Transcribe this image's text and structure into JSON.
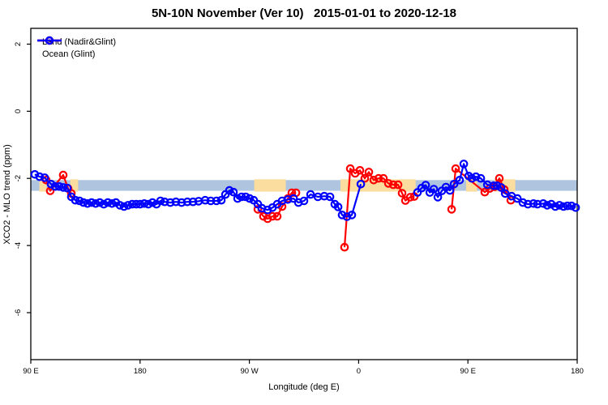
{
  "header": {
    "title": "5N-10N November (Ver 10)   2015-01-01 to 2020-12-18"
  },
  "legend": {
    "items": [
      {
        "label": "Land (Nadir&Glint)",
        "color": "#FF0000"
      },
      {
        "label": "Ocean (Glint)",
        "color": "#0000FF"
      }
    ]
  },
  "axes": {
    "x": {
      "label": "Longitude (deg E)"
    },
    "y": {
      "label": "XCO2 - MLO trend (ppm)"
    }
  },
  "chart_data": {
    "type": "line",
    "title": "5N-10N November (Ver 10)   2015-01-01 to 2020-12-18",
    "xlabel": "Longitude (deg E)",
    "ylabel": "XCO2 - MLO trend (ppm)",
    "x_axis_degrees_east": [
      90,
      540
    ],
    "x_ticks": [
      {
        "value": 90,
        "label": "90 E"
      },
      {
        "value": 180,
        "label": "180"
      },
      {
        "value": 270,
        "label": "90 W"
      },
      {
        "value": 360,
        "label": "0"
      },
      {
        "value": 450,
        "label": "90 E"
      },
      {
        "value": 540,
        "label": "180"
      }
    ],
    "y_ticks": [
      {
        "value": 2,
        "label": "2"
      },
      {
        "value": 0,
        "label": "0"
      },
      {
        "value": -2,
        "label": "-2"
      },
      {
        "value": -4,
        "label": "-4"
      },
      {
        "value": -6,
        "label": "-6"
      }
    ],
    "ylim": [
      -7.4,
      2.47
    ],
    "grid": false,
    "legend_position": "top-left",
    "reference_band": {
      "color": "#AFC4DF",
      "ppm_from": -2.05,
      "ppm_to": -2.37
    },
    "highlight_band_segments": {
      "color": "#FADD9F",
      "ranges": [
        {
          "from": 97.0,
          "to": 103.0
        },
        {
          "from": 122.5,
          "to": 129.0
        },
        {
          "from": 274.0,
          "to": 300.0
        },
        {
          "from": 345.0,
          "to": 407.0
        },
        {
          "from": 448.5,
          "to": 457.5
        },
        {
          "from": 472.0,
          "to": 489.0
        }
      ]
    },
    "series": [
      {
        "name": "Land (Nadir&Glint)",
        "color": "#FF0000",
        "segments": [
          [
            [
              102.7,
              -2.05
            ],
            [
              106.0,
              -2.37
            ],
            [
              116.7,
              -1.9
            ],
            [
              120.7,
              -2.3
            ],
            [
              123.4,
              -2.45
            ]
          ],
          [
            [
              277.0,
              -2.92
            ],
            [
              281.6,
              -3.13
            ],
            [
              285.0,
              -3.2
            ],
            [
              289.0,
              -3.13
            ],
            [
              293.0,
              -3.13
            ],
            [
              297.0,
              -2.84
            ],
            [
              301.7,
              -2.6
            ],
            [
              305.0,
              -2.43
            ],
            [
              308.4,
              -2.43
            ]
          ],
          [
            [
              348.4,
              -4.05
            ],
            [
              353.1,
              -1.71
            ],
            [
              357.1,
              -1.85
            ],
            [
              361.1,
              -1.76
            ],
            [
              365.1,
              -2.0
            ],
            [
              368.4,
              -1.81
            ],
            [
              372.4,
              -2.05
            ],
            [
              376.4,
              -2.0
            ],
            [
              380.4,
              -2.0
            ],
            [
              384.5,
              -2.15
            ],
            [
              388.5,
              -2.19
            ],
            [
              392.5,
              -2.19
            ],
            [
              395.8,
              -2.44
            ],
            [
              398.5,
              -2.66
            ],
            [
              402.5,
              -2.56
            ],
            [
              405.8,
              -2.54
            ]
          ],
          [
            [
              436.6,
              -2.92
            ],
            [
              439.9,
              -1.71
            ],
            [
              463.9,
              -2.41
            ],
            [
              467.9,
              -2.3
            ],
            [
              471.9,
              -2.25
            ],
            [
              475.9,
              -2.0
            ],
            [
              479.9,
              -2.33
            ],
            [
              485.3,
              -2.65
            ]
          ]
        ]
      },
      {
        "name": "Ocean (Glint)",
        "color": "#0000FF",
        "segments": [
          [
            [
              93.3,
              -1.88
            ],
            [
              97.3,
              -1.95
            ],
            [
              101.4,
              -1.98
            ],
            [
              106.7,
              -2.17
            ],
            [
              110.0,
              -2.24
            ],
            [
              113.4,
              -2.24
            ],
            [
              116.7,
              -2.27
            ],
            [
              120.1,
              -2.29
            ],
            [
              123.4,
              -2.55
            ],
            [
              126.7,
              -2.65
            ],
            [
              130.1,
              -2.67
            ],
            [
              133.4,
              -2.72
            ],
            [
              136.7,
              -2.75
            ],
            [
              140.1,
              -2.72
            ],
            [
              143.4,
              -2.75
            ],
            [
              146.8,
              -2.72
            ],
            [
              150.1,
              -2.77
            ],
            [
              153.4,
              -2.72
            ],
            [
              156.8,
              -2.75
            ],
            [
              160.1,
              -2.72
            ],
            [
              163.4,
              -2.8
            ],
            [
              166.8,
              -2.84
            ],
            [
              170.1,
              -2.8
            ],
            [
              173.5,
              -2.77
            ],
            [
              176.8,
              -2.77
            ],
            [
              180.1,
              -2.77
            ],
            [
              183.5,
              -2.75
            ],
            [
              186.8,
              -2.77
            ],
            [
              190.2,
              -2.72
            ],
            [
              193.5,
              -2.77
            ],
            [
              196.8,
              -2.67
            ],
            [
              200.2,
              -2.7
            ],
            [
              204.9,
              -2.72
            ],
            [
              209.5,
              -2.7
            ],
            [
              214.2,
              -2.72
            ],
            [
              218.9,
              -2.7
            ],
            [
              223.6,
              -2.7
            ],
            [
              228.2,
              -2.68
            ],
            [
              233.6,
              -2.65
            ],
            [
              238.2,
              -2.67
            ],
            [
              242.9,
              -2.67
            ],
            [
              246.9,
              -2.65
            ],
            [
              250.3,
              -2.48
            ],
            [
              253.6,
              -2.36
            ],
            [
              256.9,
              -2.41
            ],
            [
              260.3,
              -2.6
            ],
            [
              263.6,
              -2.55
            ],
            [
              267.0,
              -2.55
            ],
            [
              270.3,
              -2.6
            ],
            [
              273.6,
              -2.65
            ],
            [
              277.0,
              -2.77
            ],
            [
              280.3,
              -2.89
            ],
            [
              285.0,
              -2.94
            ],
            [
              289.0,
              -2.87
            ],
            [
              293.0,
              -2.77
            ],
            [
              297.0,
              -2.67
            ],
            [
              301.7,
              -2.63
            ],
            [
              306.4,
              -2.6
            ],
            [
              310.4,
              -2.72
            ],
            [
              315.0,
              -2.67
            ],
            [
              320.4,
              -2.48
            ],
            [
              326.4,
              -2.55
            ],
            [
              331.7,
              -2.53
            ],
            [
              336.4,
              -2.55
            ],
            [
              340.4,
              -2.77
            ],
            [
              343.1,
              -2.85
            ],
            [
              346.4,
              -3.09
            ],
            [
              350.4,
              -3.14
            ],
            [
              354.4,
              -3.09
            ],
            [
              361.8,
              -2.17
            ]
          ],
          [
            [
              408.5,
              -2.42
            ],
            [
              411.9,
              -2.29
            ],
            [
              415.2,
              -2.2
            ],
            [
              418.6,
              -2.42
            ],
            [
              421.9,
              -2.32
            ],
            [
              425.2,
              -2.56
            ],
            [
              428.6,
              -2.37
            ],
            [
              431.9,
              -2.26
            ],
            [
              435.2,
              -2.36
            ],
            [
              438.6,
              -2.17
            ],
            [
              443.2,
              -2.05
            ],
            [
              446.6,
              -1.57
            ],
            [
              450.6,
              -1.93
            ],
            [
              453.3,
              -2.0
            ],
            [
              456.6,
              -1.95
            ],
            [
              460.6,
              -2.0
            ],
            [
              466.0,
              -2.19
            ],
            [
              471.3,
              -2.22
            ],
            [
              474.0,
              -2.22
            ],
            [
              477.3,
              -2.27
            ],
            [
              480.7,
              -2.45
            ],
            [
              486.0,
              -2.53
            ],
            [
              490.7,
              -2.6
            ],
            [
              495.3,
              -2.72
            ],
            [
              499.4,
              -2.77
            ],
            [
              504.0,
              -2.75
            ],
            [
              507.3,
              -2.77
            ],
            [
              512.0,
              -2.75
            ],
            [
              515.3,
              -2.8
            ],
            [
              518.7,
              -2.77
            ],
            [
              522.0,
              -2.84
            ],
            [
              525.4,
              -2.8
            ],
            [
              528.7,
              -2.84
            ],
            [
              532.0,
              -2.82
            ],
            [
              535.4,
              -2.82
            ],
            [
              538.7,
              -2.87
            ]
          ]
        ]
      }
    ]
  }
}
